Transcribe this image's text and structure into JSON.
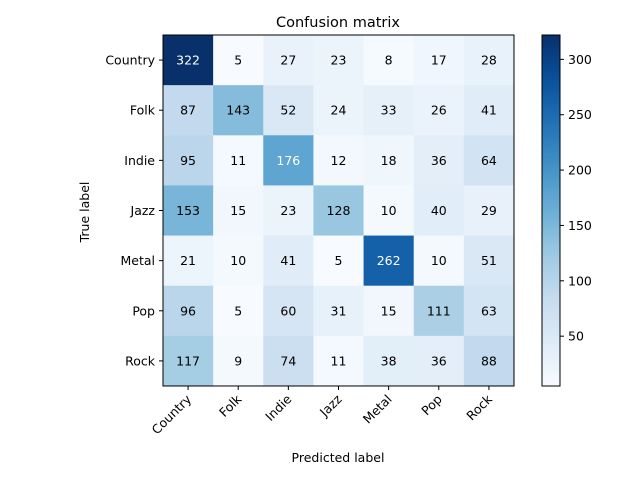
{
  "chart_data": {
    "type": "heatmap",
    "title": "Confusion matrix",
    "xlabel": "Predicted label",
    "ylabel": "True label",
    "x_categories": [
      "Country",
      "Folk",
      "Indie",
      "Jazz",
      "Metal",
      "Pop",
      "Rock"
    ],
    "y_categories": [
      "Country",
      "Folk",
      "Indie",
      "Jazz",
      "Metal",
      "Pop",
      "Rock"
    ],
    "values": [
      [
        322,
        5,
        27,
        23,
        8,
        17,
        28
      ],
      [
        87,
        143,
        52,
        24,
        33,
        26,
        41
      ],
      [
        95,
        11,
        176,
        12,
        18,
        36,
        64
      ],
      [
        153,
        15,
        23,
        128,
        10,
        40,
        29
      ],
      [
        21,
        10,
        41,
        5,
        262,
        10,
        51
      ],
      [
        96,
        5,
        60,
        31,
        15,
        111,
        63
      ],
      [
        117,
        9,
        74,
        11,
        38,
        36,
        88
      ]
    ],
    "colormap": "Blues",
    "vmin": 5,
    "vmax": 322,
    "colorbar_ticks": [
      50,
      100,
      150,
      200,
      250,
      300
    ],
    "x_tick_rotation_deg": 45
  }
}
